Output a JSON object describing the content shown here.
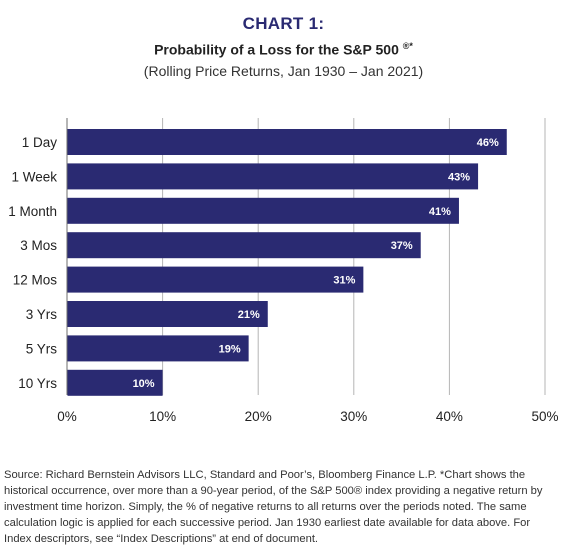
{
  "header": {
    "kicker": "CHART 1:",
    "title": "Probability of a Loss for the S&P 500",
    "title_marks": "®*",
    "subtitle": "(Rolling Price Returns, Jan 1930 – Jan 2021)"
  },
  "chart_data": {
    "type": "bar",
    "orientation": "horizontal",
    "categories": [
      "1 Day",
      "1 Week",
      "1 Month",
      "3 Mos",
      "12 Mos",
      "3 Yrs",
      "5 Yrs",
      "10 Yrs"
    ],
    "values": [
      46,
      43,
      41,
      37,
      31,
      21,
      19,
      10
    ],
    "value_labels": [
      "46%",
      "43%",
      "41%",
      "37%",
      "31%",
      "21%",
      "19%",
      "10%"
    ],
    "xlim": [
      0,
      50
    ],
    "x_ticks": [
      0,
      10,
      20,
      30,
      40,
      50
    ],
    "x_tick_labels": [
      "0%",
      "10%",
      "20%",
      "30%",
      "40%",
      "50%"
    ],
    "grid": "vertical",
    "bar_color": "#2a2a72",
    "label_color": "#ffffff"
  },
  "footer": {
    "source": "Source: Richard Bernstein Advisors LLC, Standard and Poor’s, Bloomberg Finance L.P. *Chart shows the historical occurrence, over more than a 90-year period, of the S&P 500® index providing a negative return by investment time horizon.   Simply, the % of negative returns to all returns over the periods noted.  The same calculation logic is applied for each successive period. Jan 1930 earliest date available for data above. For Index descriptors, see “Index Descriptions” at end of document."
  }
}
